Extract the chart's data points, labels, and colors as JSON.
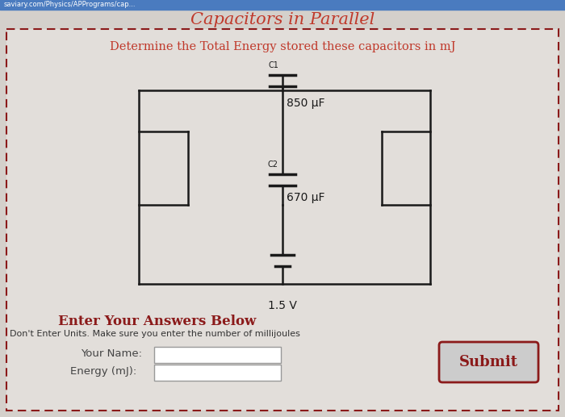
{
  "title": "Capacitors in Parallel",
  "title_color": "#c0392b",
  "subtitle": "Determine the Total Energy stored these capacitors in mJ",
  "subtitle_color": "#c0392b",
  "bg_color": "#d4d0cb",
  "inner_bg_color": "#e2deda",
  "circuit_line_color": "#1a1a1a",
  "c1_label": "C1",
  "c1_value": "850 μF",
  "c2_label": "C2",
  "c2_value": "670 μF",
  "voltage_label": "1.5 V",
  "enter_answers_text": "Enter Your Answers Below",
  "enter_answers_color": "#8b1a1a",
  "dont_enter_text": "Don't Enter Units. Make sure you enter the number of millijoules",
  "your_name_label": "Your Name:",
  "energy_label": "Energy (mJ):",
  "submit_text": "Submit",
  "submit_text_color": "#8b1a1a",
  "dashed_border_color": "#8b1a1a",
  "figsize": [
    7.0,
    5.17
  ],
  "dpi": 100
}
